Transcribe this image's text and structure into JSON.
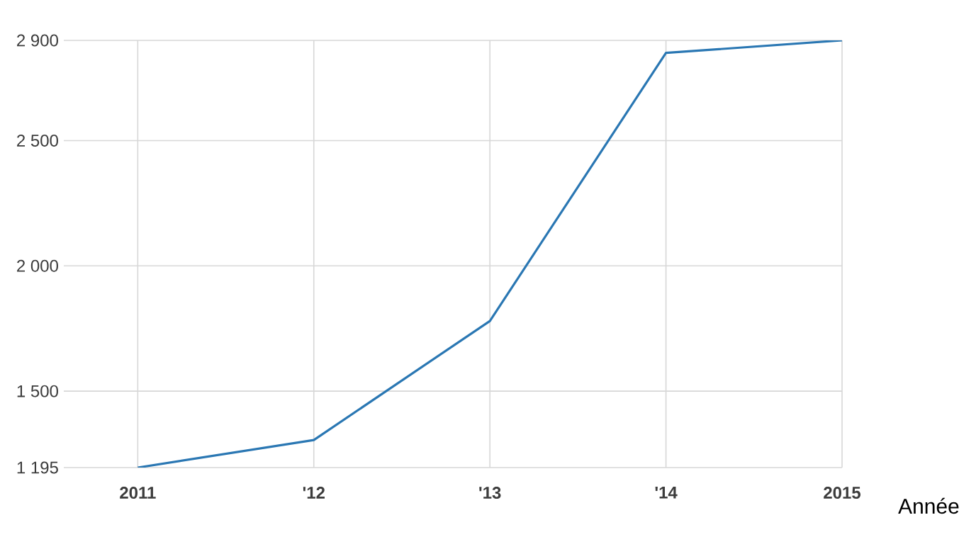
{
  "chart_data": {
    "type": "line",
    "xlabel": "Année",
    "categories": [
      "2011",
      "'12",
      "'13",
      "'14",
      "2015"
    ],
    "series": [
      {
        "color": "#2a77b3",
        "values": [
          1195,
          1305,
          1780,
          2850,
          2900
        ]
      }
    ],
    "ylim": [
      1195,
      2900
    ],
    "yticks": [
      {
        "value": 1195,
        "label": "1 195"
      },
      {
        "value": 1500,
        "label": "1 500"
      },
      {
        "value": 2000,
        "label": "2 000"
      },
      {
        "value": 2500,
        "label": "2 500"
      },
      {
        "value": 2900,
        "label": "2 900"
      }
    ],
    "grid": true,
    "marker": "none",
    "line_style": "solid"
  }
}
